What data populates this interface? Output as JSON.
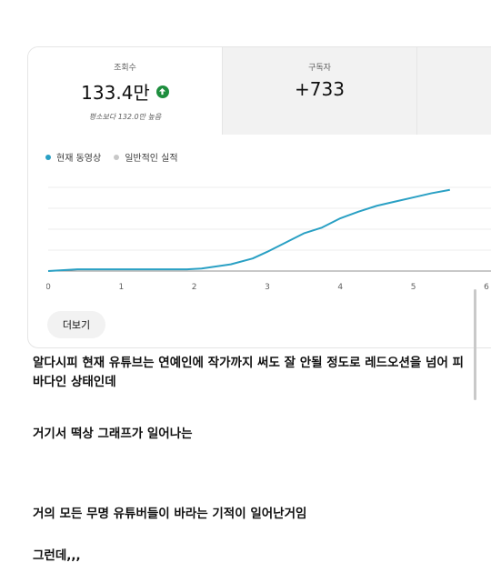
{
  "stats": [
    {
      "label": "조회수",
      "value": "133.4만",
      "sub": "평소보다 132.0만 높음",
      "trend": "up"
    },
    {
      "label": "구독자",
      "value": "+733"
    }
  ],
  "legend": {
    "current": "현재 동영상",
    "typical": "일반적인 실적"
  },
  "chart_data": {
    "type": "line",
    "x": [
      0,
      0.4,
      1,
      1.5,
      1.9,
      2.1,
      2.5,
      2.8,
      3.0,
      3.25,
      3.5,
      3.75,
      4.0,
      4.25,
      4.5,
      4.75,
      5.0,
      5.25,
      5.5
    ],
    "series": [
      {
        "values": [
          0,
          0.02,
          0.02,
          0.02,
          0.02,
          0.03,
          0.08,
          0.15,
          0.23,
          0.34,
          0.45,
          0.52,
          0.63,
          0.71,
          0.78,
          0.83,
          0.88,
          0.93,
          0.97
        ]
      }
    ],
    "xticks": [
      "0",
      "1",
      "2",
      "3",
      "4",
      "5",
      "6"
    ],
    "xlim": [
      0,
      6.2
    ],
    "ylim": [
      0,
      1.0
    ],
    "grid": true,
    "colors": {
      "current": "#2aa0c4",
      "typical": "#c8c8c8"
    }
  },
  "more_button": "더보기",
  "post": {
    "lines": [
      "알다시피 현재 유튜브는 연예인에 작가까지 써도 잘 안될 정도로 레드오션을 넘어 피바다인 상태인데",
      "거기서 떡상 그래프가 일어나는",
      "거의 모든 무명 유튜버들이 바라는 기적이 일어난거임",
      "그런데,,,"
    ]
  }
}
